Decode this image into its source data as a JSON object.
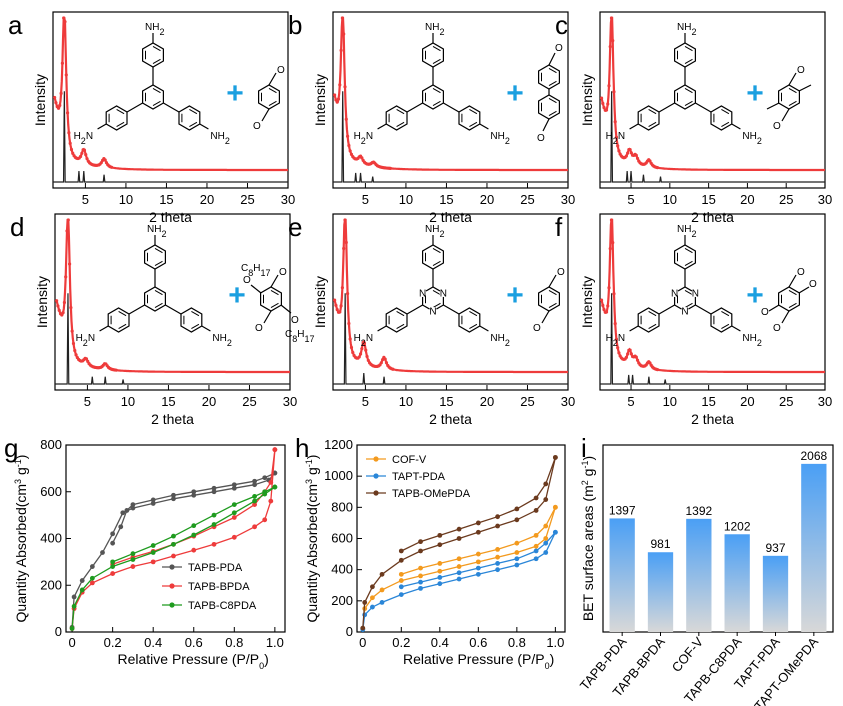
{
  "colors": {
    "red": "#ee3b3b",
    "black_line": "#222222",
    "plus": "#1a9fe0",
    "gray_series": "#555555",
    "green_series": "#1e9b1e",
    "orange_series": "#f39a1e",
    "blue_series": "#2a86d8",
    "brown_series": "#6b3a1e",
    "bar_top": "#4a9ff5",
    "bar_bottom": "#d8d8d8"
  },
  "xrd_panels": [
    {
      "label": "a",
      "amine": "TAPB",
      "aldehyde": "PDA"
    },
    {
      "label": "b",
      "amine": "TAPB",
      "aldehyde": "BPDA"
    },
    {
      "label": "c",
      "amine": "TAPB",
      "aldehyde": "VPDA"
    },
    {
      "label": "d",
      "amine": "TAPB",
      "aldehyde": "C8PDA"
    },
    {
      "label": "e",
      "amine": "TAPT",
      "aldehyde": "PDA"
    },
    {
      "label": "f",
      "amine": "TAPT",
      "aldehyde": "OMePDA"
    }
  ],
  "chem_text": {
    "nh2": "NH",
    "h2n": "H",
    "n_atom": "N",
    "o_atom": "O",
    "c8h17": "C",
    "plus": "+"
  },
  "chart_data": [
    {
      "id": "xrd",
      "type": "line",
      "xlabel": "2 theta",
      "ylabel": "Intensity",
      "xlim": [
        1,
        30
      ],
      "xticks": [
        5,
        10,
        15,
        20,
        25,
        30
      ],
      "peaks_experimental": {
        "a": [
          [
            2.4,
            1.0
          ],
          [
            4.8,
            0.1
          ],
          [
            7.3,
            0.06
          ]
        ],
        "b": [
          [
            2.2,
            1.0
          ],
          [
            4.4,
            0.05
          ],
          [
            6.0,
            0.03
          ]
        ],
        "c": [
          [
            2.5,
            1.0
          ],
          [
            4.8,
            0.09
          ],
          [
            5.6,
            0.06
          ],
          [
            7.3,
            0.05
          ]
        ],
        "d": [
          [
            2.6,
            1.0
          ],
          [
            4.8,
            0.05
          ],
          [
            7.2,
            0.04
          ]
        ],
        "e": [
          [
            2.5,
            1.0
          ],
          [
            4.8,
            0.16
          ],
          [
            7.3,
            0.08
          ]
        ],
        "f": [
          [
            2.5,
            1.0
          ],
          [
            4.8,
            0.1
          ],
          [
            5.6,
            0.06
          ],
          [
            7.3,
            0.05
          ]
        ]
      },
      "peaks_simulated": {
        "a": [
          [
            2.4,
            1.0
          ],
          [
            4.2,
            0.12
          ],
          [
            4.8,
            0.12
          ],
          [
            7.3,
            0.08
          ]
        ],
        "b": [
          [
            2.2,
            1.0
          ],
          [
            3.8,
            0.1
          ],
          [
            4.4,
            0.1
          ],
          [
            5.9,
            0.06
          ]
        ],
        "c": [
          [
            2.5,
            1.0
          ],
          [
            4.5,
            0.12
          ],
          [
            5.0,
            0.12
          ],
          [
            6.6,
            0.08
          ],
          [
            8.8,
            0.06
          ]
        ],
        "d": [
          [
            2.6,
            1.0
          ],
          [
            5.6,
            0.08
          ],
          [
            7.2,
            0.08
          ],
          [
            9.4,
            0.05
          ]
        ],
        "e": [
          [
            2.5,
            1.0
          ],
          [
            4.8,
            0.12
          ],
          [
            7.3,
            0.08
          ]
        ],
        "f": [
          [
            2.5,
            1.0
          ],
          [
            4.7,
            0.1
          ],
          [
            5.2,
            0.1
          ],
          [
            7.3,
            0.08
          ],
          [
            9.4,
            0.05
          ]
        ]
      }
    },
    {
      "id": "g",
      "label": "g",
      "type": "line",
      "xlabel": "Relative Pressure (P/P",
      "xlabel_sub": "0",
      "ylabel": "Quantity Absorbed(cm",
      "ylabel_sup1": "3",
      "ylabel_mid": " g",
      "ylabel_sup2": "-1",
      "xlim": [
        -0.03,
        1.05
      ],
      "ylim": [
        0,
        800
      ],
      "xticks": [
        0.0,
        0.2,
        0.4,
        0.6,
        0.8,
        1.0
      ],
      "xtick_labels": [
        "0",
        "0.2",
        "0.4",
        "0.6",
        "0.8",
        "1.0"
      ],
      "yticks": [
        0,
        200,
        400,
        600,
        800
      ],
      "series": [
        {
          "name": "TAPB-PDA",
          "color_key": "gray_series",
          "adsorption": [
            [
              0.0,
              20
            ],
            [
              0.01,
              150
            ],
            [
              0.05,
              220
            ],
            [
              0.1,
              280
            ],
            [
              0.15,
              340
            ],
            [
              0.2,
              420
            ],
            [
              0.25,
              510
            ],
            [
              0.3,
              530
            ],
            [
              0.4,
              550
            ],
            [
              0.5,
              570
            ],
            [
              0.6,
              585
            ],
            [
              0.7,
              600
            ],
            [
              0.8,
              615
            ],
            [
              0.9,
              630
            ],
            [
              0.97,
              650
            ],
            [
              1.0,
              680
            ]
          ],
          "desorption": [
            [
              1.0,
              680
            ],
            [
              0.95,
              660
            ],
            [
              0.9,
              645
            ],
            [
              0.8,
              630
            ],
            [
              0.7,
              615
            ],
            [
              0.6,
              600
            ],
            [
              0.5,
              585
            ],
            [
              0.4,
              565
            ],
            [
              0.3,
              545
            ],
            [
              0.27,
              520
            ],
            [
              0.24,
              450
            ],
            [
              0.2,
              380
            ]
          ]
        },
        {
          "name": "TAPB-BPDA",
          "color_key": "red",
          "adsorption": [
            [
              0.0,
              15
            ],
            [
              0.01,
              100
            ],
            [
              0.05,
              170
            ],
            [
              0.1,
              210
            ],
            [
              0.2,
              250
            ],
            [
              0.3,
              280
            ],
            [
              0.4,
              300
            ],
            [
              0.5,
              325
            ],
            [
              0.6,
              350
            ],
            [
              0.7,
              375
            ],
            [
              0.8,
              405
            ],
            [
              0.9,
              450
            ],
            [
              0.95,
              480
            ],
            [
              0.98,
              560
            ],
            [
              1.0,
              780
            ]
          ],
          "desorption": [
            [
              1.0,
              780
            ],
            [
              0.98,
              640
            ],
            [
              0.95,
              600
            ],
            [
              0.9,
              545
            ],
            [
              0.8,
              490
            ],
            [
              0.7,
              450
            ],
            [
              0.6,
              410
            ],
            [
              0.5,
              375
            ],
            [
              0.4,
              345
            ],
            [
              0.3,
              320
            ],
            [
              0.2,
              290
            ]
          ]
        },
        {
          "name": "TAPB-C8PDA",
          "color_key": "green_series",
          "adsorption": [
            [
              0.0,
              15
            ],
            [
              0.01,
              110
            ],
            [
              0.05,
              180
            ],
            [
              0.1,
              230
            ],
            [
              0.2,
              280
            ],
            [
              0.3,
              310
            ],
            [
              0.4,
              340
            ],
            [
              0.5,
              375
            ],
            [
              0.6,
              415
            ],
            [
              0.7,
              460
            ],
            [
              0.8,
              510
            ],
            [
              0.9,
              560
            ],
            [
              0.95,
              590
            ],
            [
              1.0,
              620
            ]
          ],
          "desorption": [
            [
              1.0,
              620
            ],
            [
              0.95,
              600
            ],
            [
              0.9,
              580
            ],
            [
              0.8,
              545
            ],
            [
              0.7,
              500
            ],
            [
              0.6,
              455
            ],
            [
              0.5,
              410
            ],
            [
              0.4,
              370
            ],
            [
              0.3,
              335
            ],
            [
              0.2,
              300
            ]
          ]
        }
      ]
    },
    {
      "id": "h",
      "label": "h",
      "type": "line",
      "xlabel": "Relative Pressure (P/P",
      "xlabel_sub": "0",
      "ylabel": "Quantity Absorbed(cm",
      "ylabel_sup1": "3",
      "ylabel_mid": " g",
      "ylabel_sup2": "-1",
      "xlim": [
        -0.03,
        1.05
      ],
      "ylim": [
        0,
        1200
      ],
      "xticks": [
        0.0,
        0.2,
        0.4,
        0.6,
        0.8,
        1.0
      ],
      "xtick_labels": [
        "0",
        "0.2",
        "0.4",
        "0.6",
        "0.8",
        "1.0"
      ],
      "yticks": [
        0,
        200,
        400,
        600,
        800,
        1000,
        1200
      ],
      "series": [
        {
          "name": "COF-V",
          "color_key": "orange_series",
          "adsorption": [
            [
              0.0,
              20
            ],
            [
              0.01,
              150
            ],
            [
              0.05,
              220
            ],
            [
              0.1,
              270
            ],
            [
              0.2,
              330
            ],
            [
              0.3,
              360
            ],
            [
              0.4,
              390
            ],
            [
              0.5,
              420
            ],
            [
              0.6,
              450
            ],
            [
              0.7,
              480
            ],
            [
              0.8,
              510
            ],
            [
              0.9,
              550
            ],
            [
              0.95,
              600
            ],
            [
              1.0,
              800
            ]
          ],
          "desorption": [
            [
              1.0,
              800
            ],
            [
              0.95,
              680
            ],
            [
              0.9,
              620
            ],
            [
              0.8,
              570
            ],
            [
              0.7,
              530
            ],
            [
              0.6,
              500
            ],
            [
              0.5,
              470
            ],
            [
              0.4,
              440
            ],
            [
              0.3,
              410
            ],
            [
              0.2,
              370
            ]
          ]
        },
        {
          "name": "TAPT-PDA",
          "color_key": "blue_series",
          "adsorption": [
            [
              0.0,
              15
            ],
            [
              0.01,
              110
            ],
            [
              0.05,
              160
            ],
            [
              0.1,
              190
            ],
            [
              0.2,
              240
            ],
            [
              0.3,
              280
            ],
            [
              0.4,
              310
            ],
            [
              0.5,
              340
            ],
            [
              0.6,
              370
            ],
            [
              0.7,
              400
            ],
            [
              0.8,
              430
            ],
            [
              0.9,
              470
            ],
            [
              0.95,
              510
            ],
            [
              1.0,
              640
            ]
          ],
          "desorption": [
            [
              1.0,
              640
            ],
            [
              0.95,
              570
            ],
            [
              0.9,
              520
            ],
            [
              0.8,
              470
            ],
            [
              0.7,
              440
            ],
            [
              0.6,
              410
            ],
            [
              0.5,
              380
            ],
            [
              0.4,
              350
            ],
            [
              0.3,
              320
            ],
            [
              0.2,
              290
            ]
          ]
        },
        {
          "name": "TAPB-OMePDA",
          "color_key": "brown_series",
          "adsorption": [
            [
              0.0,
              25
            ],
            [
              0.01,
              190
            ],
            [
              0.05,
              290
            ],
            [
              0.1,
              370
            ],
            [
              0.2,
              460
            ],
            [
              0.3,
              520
            ],
            [
              0.4,
              560
            ],
            [
              0.5,
              600
            ],
            [
              0.6,
              640
            ],
            [
              0.7,
              680
            ],
            [
              0.8,
              720
            ],
            [
              0.9,
              780
            ],
            [
              0.95,
              850
            ],
            [
              1.0,
              1120
            ]
          ],
          "desorption": [
            [
              1.0,
              1120
            ],
            [
              0.95,
              950
            ],
            [
              0.9,
              860
            ],
            [
              0.8,
              790
            ],
            [
              0.7,
              740
            ],
            [
              0.6,
              700
            ],
            [
              0.5,
              660
            ],
            [
              0.4,
              620
            ],
            [
              0.3,
              580
            ],
            [
              0.2,
              520
            ]
          ]
        }
      ]
    },
    {
      "id": "i",
      "label": "i",
      "type": "bar",
      "ylabel": "BET surface areas (m",
      "ylabel_sup1": "2",
      "ylabel_mid": " g",
      "ylabel_sup2": "-1",
      "ylabel_close": ")",
      "ylim": [
        0,
        2300
      ],
      "categories": [
        "TAPB-PDA",
        "TAPB-BPDA",
        "COF-V",
        "TAPB-C8PDA",
        "TAPT-PDA",
        "TAPT-OMePDA"
      ],
      "values": [
        1397,
        981,
        1392,
        1202,
        937,
        2068
      ],
      "value_labels": [
        "1397",
        "981",
        "1392",
        "1202",
        "937",
        "2068"
      ]
    }
  ]
}
